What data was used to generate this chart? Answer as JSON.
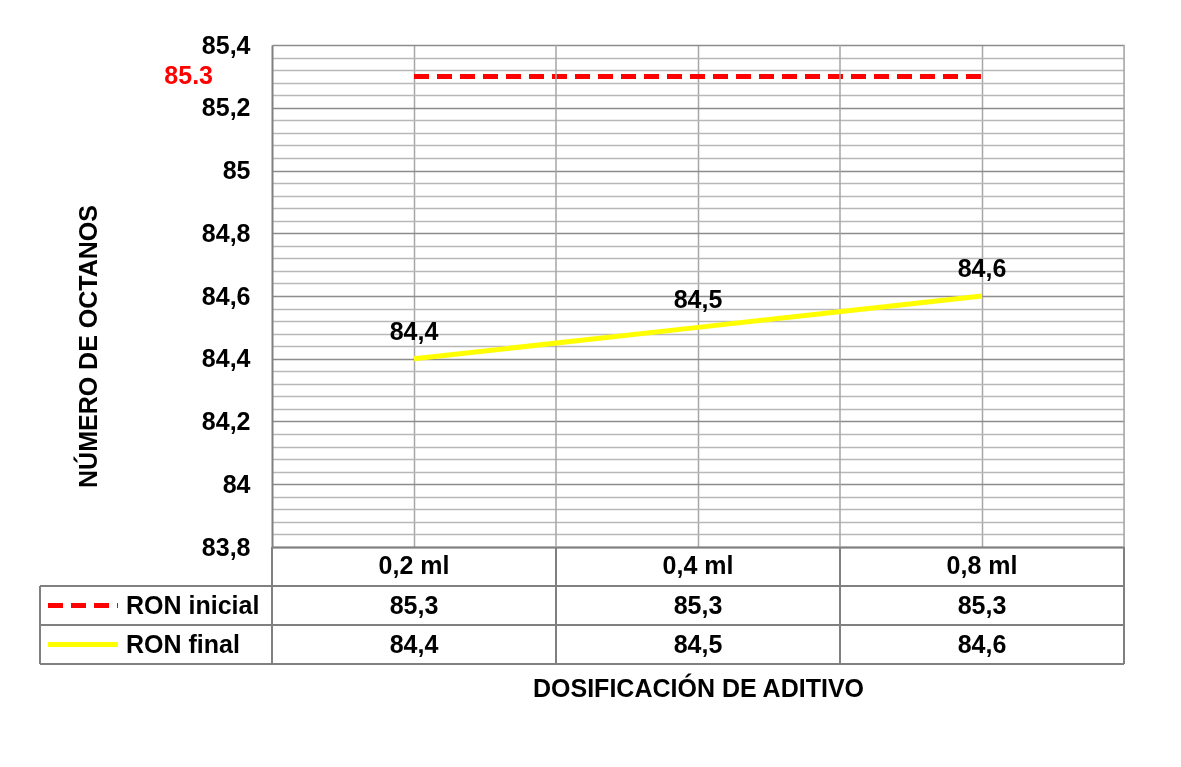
{
  "chart_data": {
    "type": "line",
    "xlabel": "DOSIFICACIÓN DE ADITIVO",
    "ylabel": "NÚMERO DE OCTANOS",
    "categories": [
      "0,2 ml",
      "0,4 ml",
      "0,8 ml"
    ],
    "series": [
      {
        "name": "RON inicial",
        "color": "#ff0000",
        "line_style": "dashed",
        "values": [
          85.3,
          85.3,
          85.3
        ],
        "value_labels": [
          "85,3",
          "85,3",
          "85,3"
        ]
      },
      {
        "name": "RON final",
        "color": "#ffff00",
        "line_style": "solid",
        "values": [
          84.4,
          84.5,
          84.6
        ],
        "value_labels": [
          "84,4",
          "84,5",
          "84,6"
        ]
      }
    ],
    "ylim": [
      83.8,
      85.4
    ],
    "yticks": [
      {
        "value": 83.8,
        "label": "83,8"
      },
      {
        "value": 83.84,
        "label": null
      },
      {
        "value": 83.88,
        "label": null
      },
      {
        "value": 83.92,
        "label": null
      },
      {
        "value": 83.96,
        "label": null
      },
      84,
      {
        "value": 84.04,
        "label": null
      },
      {
        "value": 84.08,
        "label": null
      },
      {
        "value": 84.12,
        "label": null
      },
      {
        "value": 84.16,
        "label": null
      },
      {
        "value": 84.2,
        "label": "84,2"
      },
      {
        "value": 84.24,
        "label": null
      },
      {
        "value": 84.28,
        "label": null
      },
      {
        "value": 84.32,
        "label": null
      },
      {
        "value": 84.36,
        "label": null
      },
      {
        "value": 84.4,
        "label": "84,4"
      },
      {
        "value": 84.44,
        "label": null
      },
      {
        "value": 84.48,
        "label": null
      },
      {
        "value": 84.52,
        "label": null
      },
      {
        "value": 84.56,
        "label": null
      },
      {
        "value": 84.6,
        "label": "84,6"
      },
      {
        "value": 84.64,
        "label": null
      },
      {
        "value": 84.68,
        "label": null
      },
      {
        "value": 84.72,
        "label": null
      },
      {
        "value": 84.76,
        "label": null
      },
      {
        "value": 84.8,
        "label": "84,8"
      },
      {
        "value": 84.84,
        "label": null
      },
      {
        "value": 84.88,
        "label": null
      },
      {
        "value": 84.92,
        "label": null
      },
      {
        "value": 84.96,
        "label": null
      },
      85,
      {
        "value": 85.04,
        "label": null
      },
      {
        "value": 85.08,
        "label": null
      },
      {
        "value": 85.12,
        "label": null
      },
      {
        "value": 85.16,
        "label": null
      },
      {
        "value": 85.2,
        "label": "85,2"
      },
      {
        "value": 85.24,
        "label": null
      },
      {
        "value": 85.28,
        "label": null
      },
      {
        "value": 85.32,
        "label": null
      },
      {
        "value": 85.36,
        "label": null
      },
      {
        "value": 85.4,
        "label": "85,4"
      }
    ],
    "grid": true,
    "legend": "bottom left",
    "marker": "none",
    "annotations": [
      "85.3",
      {
        "text": "84,4",
        "x": "0,2 ml",
        "y": 84.4
      },
      {
        "text": "84,5",
        "x": "0,4 ml",
        "y": 84.5
      },
      {
        "text": "84,6",
        "x": "0,8 ml",
        "y": 84.6
      }
    ]
  }
}
